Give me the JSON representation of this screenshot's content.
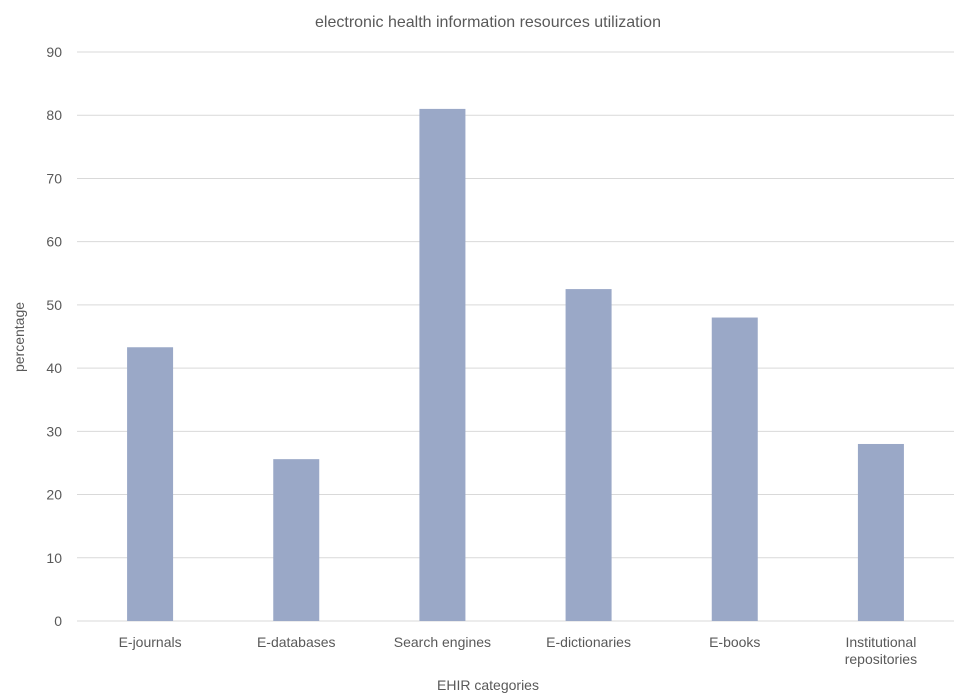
{
  "chart_data": {
    "type": "bar",
    "title": "electronic health information resources utilization",
    "xlabel": "EHIR categories",
    "ylabel": "percentage",
    "categories": [
      [
        "E-journals"
      ],
      [
        "E-databases"
      ],
      [
        "Search engines"
      ],
      [
        "E-dictionaries"
      ],
      [
        "E-books"
      ],
      [
        "Institutional",
        "repositories"
      ]
    ],
    "values": [
      43.3,
      25.6,
      81.0,
      52.5,
      48.0,
      28.0
    ],
    "ylim": [
      0,
      90
    ],
    "yticks": [
      0,
      10,
      20,
      30,
      40,
      50,
      60,
      70,
      80,
      90
    ],
    "grid": true,
    "legend": "none",
    "colors": {
      "bar": "#9aa8c7",
      "grid": "#d9d9d9",
      "text": "#595959"
    }
  }
}
